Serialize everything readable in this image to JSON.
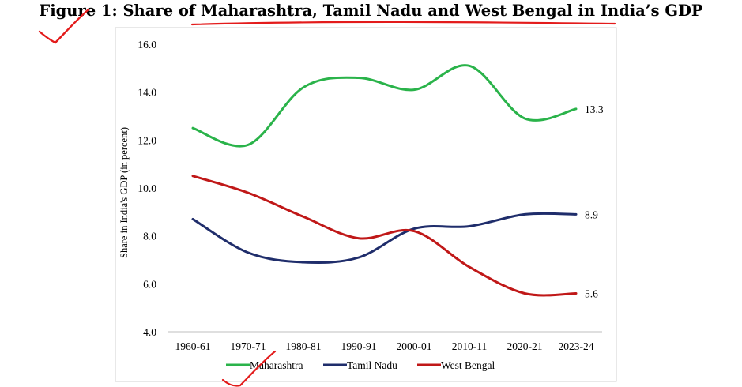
{
  "figure": {
    "title": "Figure 1: Share of Maharashtra, Tamil Nadu and West Bengal in India’s GDP"
  },
  "chart_data": {
    "type": "line",
    "title": "Figure 1: Share of Maharashtra, Tamil Nadu and West Bengal in India’s GDP",
    "xlabel": "",
    "ylabel": "Share in India's GDP (in percent)",
    "x": [
      "1960-61",
      "1970-71",
      "1980-81",
      "1990-91",
      "2000-01",
      "2010-11",
      "2020-21",
      "2023-24"
    ],
    "ylim": [
      4.0,
      16.0
    ],
    "yticks": [
      "4.0",
      "6.0",
      "8.0",
      "10.0",
      "12.0",
      "14.0",
      "16.0"
    ],
    "grid": false,
    "legend_position": "bottom",
    "series": [
      {
        "name": "Maharashtra",
        "color": "#2ab34a",
        "values": [
          12.5,
          11.8,
          14.2,
          14.6,
          14.1,
          15.1,
          12.9,
          13.3
        ],
        "end_label": "13.3"
      },
      {
        "name": "Tamil Nadu",
        "color": "#1f2d6b",
        "values": [
          8.7,
          7.3,
          6.9,
          7.1,
          8.3,
          8.4,
          8.9,
          8.9
        ],
        "end_label": "8.9"
      },
      {
        "name": "West Bengal",
        "color": "#c01818",
        "values": [
          10.5,
          9.8,
          8.8,
          7.9,
          8.2,
          6.7,
          5.6,
          5.6
        ],
        "end_label": "5.6"
      }
    ]
  }
}
